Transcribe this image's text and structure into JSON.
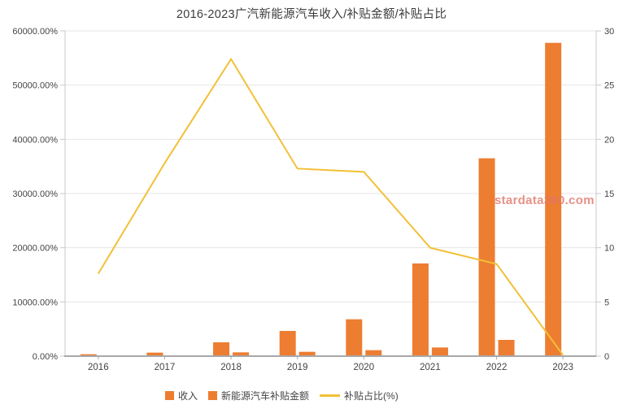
{
  "title": "2016-2023广汽新能源汽车收入/补贴金额/补贴占比",
  "watermark": "stardata360.com",
  "legend": [
    {
      "label": "收入",
      "type": "bar",
      "color": "#ED7D31"
    },
    {
      "label": "新能源汽车补贴金额",
      "type": "bar",
      "color": "#ED7D31"
    },
    {
      "label": "补贴占比(%)",
      "type": "line",
      "color": "#F2C037"
    }
  ],
  "chart_data": {
    "type": "bar",
    "subtype": "grouped bars with secondary-axis line",
    "title": "2016-2023广汽新能源汽车收入/补贴金额/补贴占比",
    "categories": [
      "2016",
      "2017",
      "2018",
      "2019",
      "2020",
      "2021",
      "2022",
      "2023"
    ],
    "series": [
      {
        "name": "收入",
        "type": "bar",
        "axis": "left",
        "color": "#ED7D31",
        "values": [
          350,
          650,
          2550,
          4650,
          6800,
          17100,
          36500,
          57800
        ]
      },
      {
        "name": "新能源汽车补贴金额",
        "type": "bar",
        "axis": "left",
        "color": "#ED7D31",
        "values": [
          30,
          120,
          700,
          800,
          1100,
          1600,
          3000,
          60
        ]
      },
      {
        "name": "补贴占比(%)",
        "type": "line",
        "axis": "right",
        "color": "#F2C037",
        "values": [
          7.6,
          17.8,
          27.4,
          17.3,
          17.0,
          10.0,
          8.5,
          0.1
        ]
      }
    ],
    "left_axis": {
      "min": 0,
      "max": 60000,
      "tick_values": [
        0,
        10000,
        20000,
        30000,
        40000,
        50000,
        60000
      ],
      "tick_labels": [
        "0.00%",
        "10000.00%",
        "20000.00%",
        "30000.00%",
        "40000.00%",
        "50000.00%",
        "60000.00%"
      ]
    },
    "right_axis": {
      "min": 0,
      "max": 30,
      "tick_values": [
        0,
        5,
        10,
        15,
        20,
        25,
        30
      ],
      "tick_labels": [
        "0",
        "5",
        "10",
        "15",
        "20",
        "25",
        "30"
      ]
    },
    "grid": true,
    "legend_position": "bottom"
  },
  "colors": {
    "bar": "#ED7D31",
    "line": "#F2C037",
    "gridline": "#e5e5e5",
    "axis_line": "#c9c9c9",
    "bottom_axis": "#a8a8a8",
    "text": "#444444",
    "watermark": "#E0766A"
  }
}
